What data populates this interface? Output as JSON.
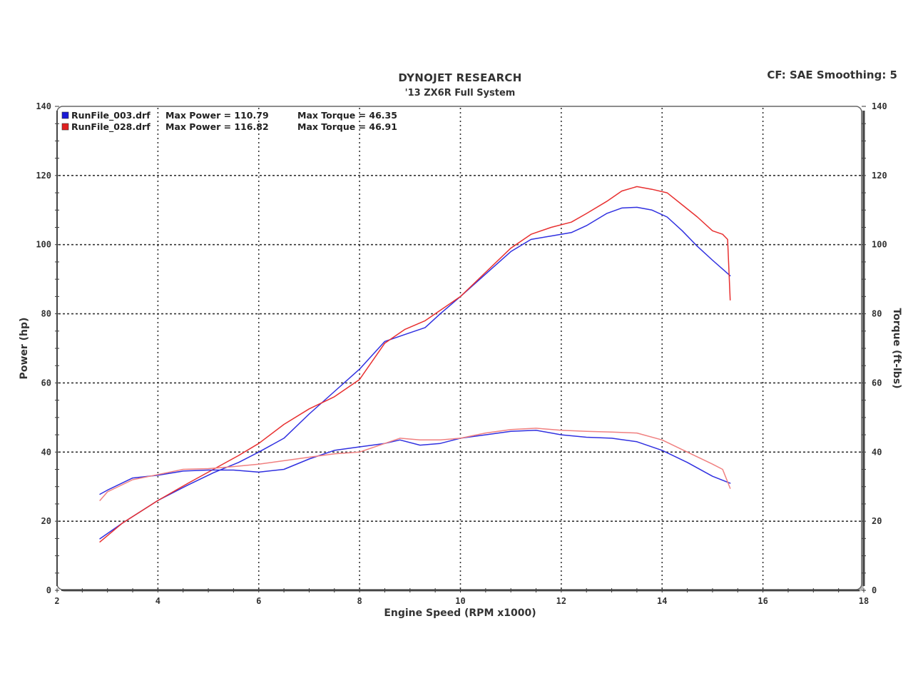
{
  "header": {
    "title": "DYNOJET RESEARCH",
    "subtitle": "'13 ZX6R Full System",
    "settings": "CF: SAE  Smoothing: 5"
  },
  "legend": [
    {
      "file": "RunFile_003.drf",
      "max_power_label": "Max Power = 110.79",
      "max_torque_label": "Max Torque = 46.35",
      "color": "#1a1ad6"
    },
    {
      "file": "RunFile_028.drf",
      "max_power_label": "Max Power = 116.82",
      "max_torque_label": "Max Torque = 46.91",
      "color": "#e02020"
    }
  ],
  "axes": {
    "xlabel": "Engine Speed (RPM x1000)",
    "ylabel_left": "Power (hp)",
    "ylabel_right": "Torque (ft-lbs)"
  },
  "colors": {
    "run003": "#3030e0",
    "run028": "#e83030",
    "run028_torque": "#f08080",
    "grid": "#333333",
    "frame": "#777777"
  },
  "chart_data": {
    "type": "line",
    "title": "DYNOJET RESEARCH",
    "subtitle": "'13 ZX6R Full System",
    "annotation": "CF: SAE  Smoothing: 5",
    "xlabel": "Engine Speed (RPM x1000)",
    "ylabel": "Power (hp)",
    "ylabel_right": "Torque (ft-lbs)",
    "xlim": [
      2,
      18
    ],
    "ylim": [
      0,
      140
    ],
    "ylim_right": [
      0,
      140
    ],
    "xticks": [
      2,
      4,
      6,
      8,
      10,
      12,
      14,
      16,
      18
    ],
    "yticks": [
      0,
      20,
      40,
      60,
      80,
      100,
      120,
      140
    ],
    "grid": true,
    "legend_position": "top-left",
    "series": [
      {
        "name": "RunFile_003.drf Power",
        "run": "RunFile_003.drf",
        "measure": "power",
        "color": "#3030e0",
        "max": 110.79,
        "x": [
          2.85,
          3.3,
          4.0,
          4.6,
          5.1,
          5.6,
          6.0,
          6.5,
          7.0,
          7.5,
          8.0,
          8.5,
          8.9,
          9.3,
          9.6,
          10.0,
          10.5,
          11.0,
          11.4,
          11.8,
          12.2,
          12.5,
          12.9,
          13.2,
          13.5,
          13.8,
          14.1,
          14.4,
          14.7,
          15.0,
          15.35
        ],
        "y": [
          14.9,
          19.5,
          26.0,
          30.5,
          34.0,
          37.0,
          40.0,
          44.0,
          51.0,
          57.5,
          64.0,
          72.0,
          74.0,
          76.0,
          80.0,
          85.0,
          91.5,
          98.0,
          101.5,
          102.5,
          103.5,
          105.5,
          109.0,
          110.6,
          110.8,
          110.0,
          108.0,
          104.0,
          99.5,
          95.5,
          91.0
        ]
      },
      {
        "name": "RunFile_028.drf Power",
        "run": "RunFile_028.drf",
        "measure": "power",
        "color": "#e83030",
        "max": 116.82,
        "x": [
          2.85,
          3.3,
          4.0,
          4.6,
          5.1,
          5.6,
          6.0,
          6.5,
          7.0,
          7.5,
          8.0,
          8.5,
          8.9,
          9.3,
          9.6,
          10.0,
          10.5,
          11.0,
          11.4,
          11.8,
          12.2,
          12.5,
          12.9,
          13.2,
          13.5,
          13.8,
          14.1,
          14.4,
          14.7,
          15.0,
          15.2,
          15.3,
          15.35
        ],
        "y": [
          14.0,
          19.5,
          26.0,
          31.0,
          35.0,
          39.0,
          42.5,
          48.0,
          52.5,
          56.0,
          61.0,
          71.5,
          75.5,
          78.0,
          81.0,
          85.0,
          92.0,
          99.0,
          103.0,
          105.0,
          106.5,
          109.0,
          112.5,
          115.5,
          116.8,
          116.0,
          115.0,
          111.5,
          108.0,
          104.0,
          103.0,
          101.5,
          84.0
        ]
      },
      {
        "name": "RunFile_003.drf Torque",
        "run": "RunFile_003.drf",
        "measure": "torque",
        "color": "#3030e0",
        "max": 46.35,
        "x": [
          2.85,
          3.0,
          3.5,
          4.0,
          4.5,
          5.0,
          5.5,
          6.0,
          6.5,
          7.0,
          7.5,
          8.0,
          8.5,
          8.8,
          9.2,
          9.6,
          10.0,
          10.5,
          11.0,
          11.5,
          12.0,
          12.5,
          13.0,
          13.5,
          14.0,
          14.5,
          15.0,
          15.35
        ],
        "y": [
          27.8,
          29.0,
          32.5,
          33.3,
          34.5,
          34.8,
          34.8,
          34.2,
          35.0,
          38.0,
          40.5,
          41.5,
          42.5,
          43.5,
          42.0,
          42.5,
          44.0,
          45.0,
          46.0,
          46.3,
          45.0,
          44.3,
          44.0,
          43.0,
          40.5,
          37.0,
          33.0,
          31.0
        ]
      },
      {
        "name": "RunFile_028.drf Torque",
        "run": "RunFile_028.drf",
        "measure": "torque",
        "color": "#f08080",
        "max": 46.91,
        "x": [
          2.85,
          3.0,
          3.5,
          4.0,
          4.5,
          5.0,
          5.5,
          6.0,
          6.5,
          7.0,
          7.5,
          8.0,
          8.5,
          8.8,
          9.2,
          9.6,
          10.0,
          10.5,
          11.0,
          11.5,
          12.0,
          12.5,
          13.0,
          13.5,
          14.0,
          14.5,
          15.0,
          15.2,
          15.35
        ],
        "y": [
          26.0,
          28.5,
          32.0,
          33.5,
          35.0,
          35.2,
          35.8,
          36.5,
          37.5,
          38.5,
          39.5,
          40.0,
          42.5,
          44.0,
          43.5,
          43.5,
          44.0,
          45.5,
          46.5,
          46.9,
          46.3,
          46.0,
          45.8,
          45.5,
          43.5,
          40.0,
          36.5,
          35.0,
          29.5
        ]
      }
    ]
  }
}
